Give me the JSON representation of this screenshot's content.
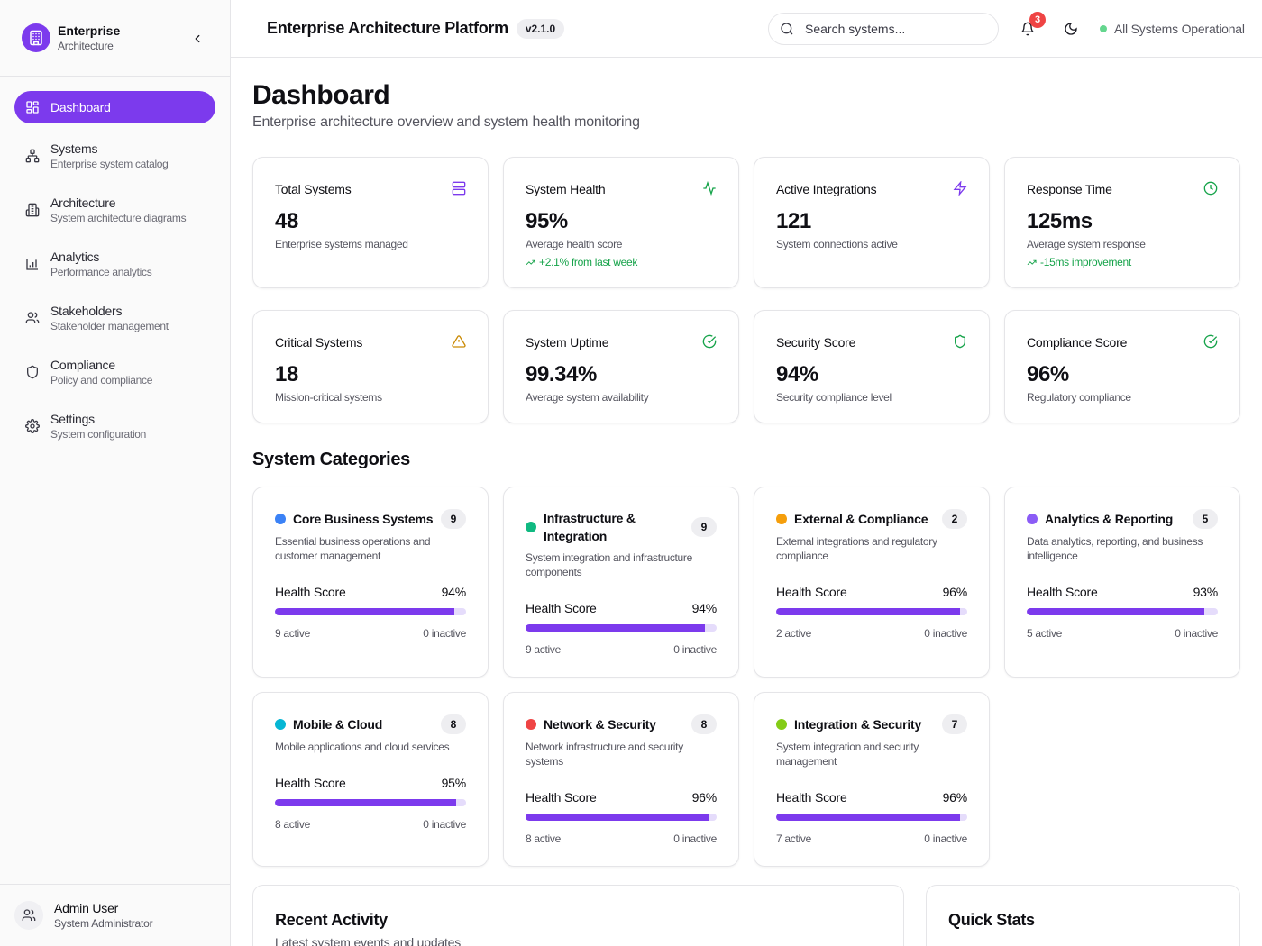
{
  "brand": {
    "title": "Enterprise",
    "subtitle": "Architecture"
  },
  "nav": [
    {
      "label": "Dashboard",
      "desc": "",
      "icon": "grid-icon",
      "active": true
    },
    {
      "label": "Systems",
      "desc": "Enterprise system catalog",
      "icon": "network-icon"
    },
    {
      "label": "Architecture",
      "desc": "System architecture diagrams",
      "icon": "building-icon"
    },
    {
      "label": "Analytics",
      "desc": "Performance analytics",
      "icon": "bar-chart-icon"
    },
    {
      "label": "Stakeholders",
      "desc": "Stakeholder management",
      "icon": "users-icon"
    },
    {
      "label": "Compliance",
      "desc": "Policy and compliance",
      "icon": "shield-icon"
    },
    {
      "label": "Settings",
      "desc": "System configuration",
      "icon": "gear-icon"
    }
  ],
  "user": {
    "name": "Admin User",
    "role": "System Administrator"
  },
  "header": {
    "title": "Enterprise Architecture Platform",
    "version": "v2.1.0",
    "search_placeholder": "Search systems...",
    "notifications": "3",
    "status": "All Systems Operational"
  },
  "page": {
    "title": "Dashboard",
    "subtitle": "Enterprise architecture overview and system health monitoring"
  },
  "stats": [
    {
      "label": "Total Systems",
      "value": "48",
      "desc": "Enterprise systems managed",
      "trend": "",
      "icon": "server-icon",
      "color": "#7c3aed"
    },
    {
      "label": "System Health",
      "value": "95%",
      "desc": "Average health score",
      "trend": "+2.1% from last week",
      "icon": "activity-icon",
      "color": "#16a34a"
    },
    {
      "label": "Active Integrations",
      "value": "121",
      "desc": "System connections active",
      "trend": "",
      "icon": "zap-icon",
      "color": "#7c3aed"
    },
    {
      "label": "Response Time",
      "value": "125ms",
      "desc": "Average system response",
      "trend": "-15ms improvement",
      "icon": "clock-icon",
      "color": "#16a34a"
    },
    {
      "label": "Critical Systems",
      "value": "18",
      "desc": "Mission-critical systems",
      "trend": "",
      "icon": "warning-icon",
      "color": "#ca8a04"
    },
    {
      "label": "System Uptime",
      "value": "99.34%",
      "desc": "Average system availability",
      "trend": "",
      "icon": "check-circle-icon",
      "color": "#16a34a"
    },
    {
      "label": "Security Score",
      "value": "94%",
      "desc": "Security compliance level",
      "trend": "",
      "icon": "shield-icon",
      "color": "#16a34a"
    },
    {
      "label": "Compliance Score",
      "value": "96%",
      "desc": "Regulatory compliance",
      "trend": "",
      "icon": "check-circle-icon",
      "color": "#16a34a"
    }
  ],
  "categories_title": "System Categories",
  "categories": [
    {
      "name": "Core Business Systems",
      "count": "9",
      "desc": "Essential business operations and customer management",
      "health_label": "Health Score",
      "health": "94%",
      "health_value": 94,
      "active": "9 active",
      "inactive": "0 inactive",
      "color": "#3b82f6"
    },
    {
      "name": "Infrastructure & Integration",
      "count": "9",
      "desc": "System integration and infrastructure components",
      "health_label": "Health Score",
      "health": "94%",
      "health_value": 94,
      "active": "9 active",
      "inactive": "0 inactive",
      "color": "#10b981"
    },
    {
      "name": "External & Compliance",
      "count": "2",
      "desc": "External integrations and regulatory compliance",
      "health_label": "Health Score",
      "health": "96%",
      "health_value": 96,
      "active": "2 active",
      "inactive": "0 inactive",
      "color": "#f59e0b"
    },
    {
      "name": "Analytics & Reporting",
      "count": "5",
      "desc": "Data analytics, reporting, and business intelligence",
      "health_label": "Health Score",
      "health": "93%",
      "health_value": 93,
      "active": "5 active",
      "inactive": "0 inactive",
      "color": "#8b5cf6"
    },
    {
      "name": "Mobile & Cloud",
      "count": "8",
      "desc": "Mobile applications and cloud services",
      "health_label": "Health Score",
      "health": "95%",
      "health_value": 95,
      "active": "8 active",
      "inactive": "0 inactive",
      "color": "#06b6d4"
    },
    {
      "name": "Network & Security",
      "count": "8",
      "desc": "Network infrastructure and security systems",
      "health_label": "Health Score",
      "health": "96%",
      "health_value": 96,
      "active": "8 active",
      "inactive": "0 inactive",
      "color": "#ef4444"
    },
    {
      "name": "Integration & Security",
      "count": "7",
      "desc": "System integration and security management",
      "health_label": "Health Score",
      "health": "96%",
      "health_value": 96,
      "active": "7 active",
      "inactive": "0 inactive",
      "color": "#84cc16"
    }
  ],
  "recent": {
    "title": "Recent Activity",
    "subtitle": "Latest system events and updates"
  },
  "quick": {
    "title": "Quick Stats"
  }
}
